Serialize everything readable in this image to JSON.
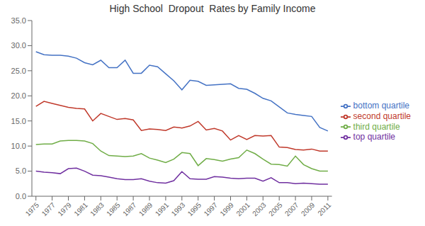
{
  "chart_data": {
    "type": "line",
    "title": "High School  Dropout  Rates by Family Income",
    "x": [
      1975,
      1976,
      1977,
      1978,
      1979,
      1980,
      1981,
      1982,
      1983,
      1984,
      1985,
      1986,
      1987,
      1988,
      1989,
      1990,
      1991,
      1992,
      1993,
      1994,
      1995,
      1996,
      1997,
      1998,
      1999,
      2000,
      2001,
      2002,
      2003,
      2004,
      2005,
      2006,
      2007,
      2008,
      2009,
      2010,
      2011
    ],
    "series": [
      {
        "name": "bottom quartile",
        "color": "#4472C4",
        "values": [
          28.8,
          28.2,
          28.1,
          28.1,
          27.9,
          27.5,
          26.6,
          26.2,
          27.1,
          25.6,
          25.6,
          27.1,
          24.5,
          24.5,
          26.1,
          25.8,
          24.4,
          23.0,
          21.2,
          23.1,
          22.9,
          22.1,
          22.2,
          22.3,
          22.4,
          21.5,
          21.3,
          20.5,
          19.5,
          19.0,
          17.8,
          16.6,
          16.3,
          16.1,
          15.9,
          13.7,
          13.0
        ]
      },
      {
        "name": "second quartile",
        "color": "#C0392B",
        "values": [
          17.9,
          18.9,
          18.5,
          18.1,
          17.7,
          17.5,
          17.4,
          15.0,
          16.5,
          15.9,
          15.3,
          15.5,
          15.2,
          13.1,
          13.4,
          13.3,
          13.1,
          13.8,
          13.6,
          14.0,
          14.9,
          13.2,
          13.5,
          13.0,
          11.2,
          12.1,
          11.3,
          12.1,
          12.0,
          12.1,
          9.8,
          9.7,
          9.3,
          9.2,
          9.4,
          9.0,
          9.0
        ]
      },
      {
        "name": "third quartile",
        "color": "#70AD47",
        "values": [
          10.3,
          10.4,
          10.4,
          11.0,
          11.1,
          11.1,
          11.0,
          10.5,
          9.0,
          8.1,
          8.0,
          7.9,
          8.0,
          8.5,
          7.6,
          7.2,
          6.7,
          7.4,
          8.7,
          8.5,
          6.1,
          7.5,
          7.3,
          7.0,
          7.4,
          7.7,
          9.2,
          8.5,
          7.4,
          6.4,
          6.3,
          6.0,
          8.0,
          6.3,
          5.5,
          5.0,
          5.0
        ]
      },
      {
        "name": "top quartile",
        "color": "#7030A0",
        "values": [
          5.0,
          4.8,
          4.7,
          4.5,
          5.5,
          5.6,
          5.0,
          4.2,
          4.1,
          3.8,
          3.5,
          3.3,
          3.3,
          3.5,
          3.0,
          2.7,
          2.6,
          3.1,
          4.9,
          3.5,
          3.4,
          3.4,
          3.9,
          3.8,
          3.6,
          3.5,
          3.6,
          3.6,
          3.0,
          3.7,
          2.7,
          2.7,
          2.5,
          2.6,
          2.5,
          2.4,
          2.4
        ]
      }
    ],
    "xlim": [
      1974.5,
      2011.5
    ],
    "xticks": [
      1975,
      1977,
      1979,
      1981,
      1983,
      1985,
      1987,
      1989,
      1991,
      1993,
      1995,
      1997,
      1999,
      2001,
      2003,
      2005,
      2007,
      2009,
      2011
    ],
    "ylim": [
      0,
      35
    ],
    "yticks": [
      {
        "value": 0,
        "label": "0.0"
      },
      {
        "value": 5,
        "label": "5.0"
      },
      {
        "value": 10,
        "label": "10.0"
      },
      {
        "value": 15,
        "label": "15.0"
      },
      {
        "value": 20,
        "label": "20.0"
      },
      {
        "value": 25,
        "label": "25.0"
      },
      {
        "value": 30,
        "label": "30.0"
      },
      {
        "value": 35,
        "label": "35.0"
      }
    ],
    "grid": false,
    "legend": "right"
  }
}
